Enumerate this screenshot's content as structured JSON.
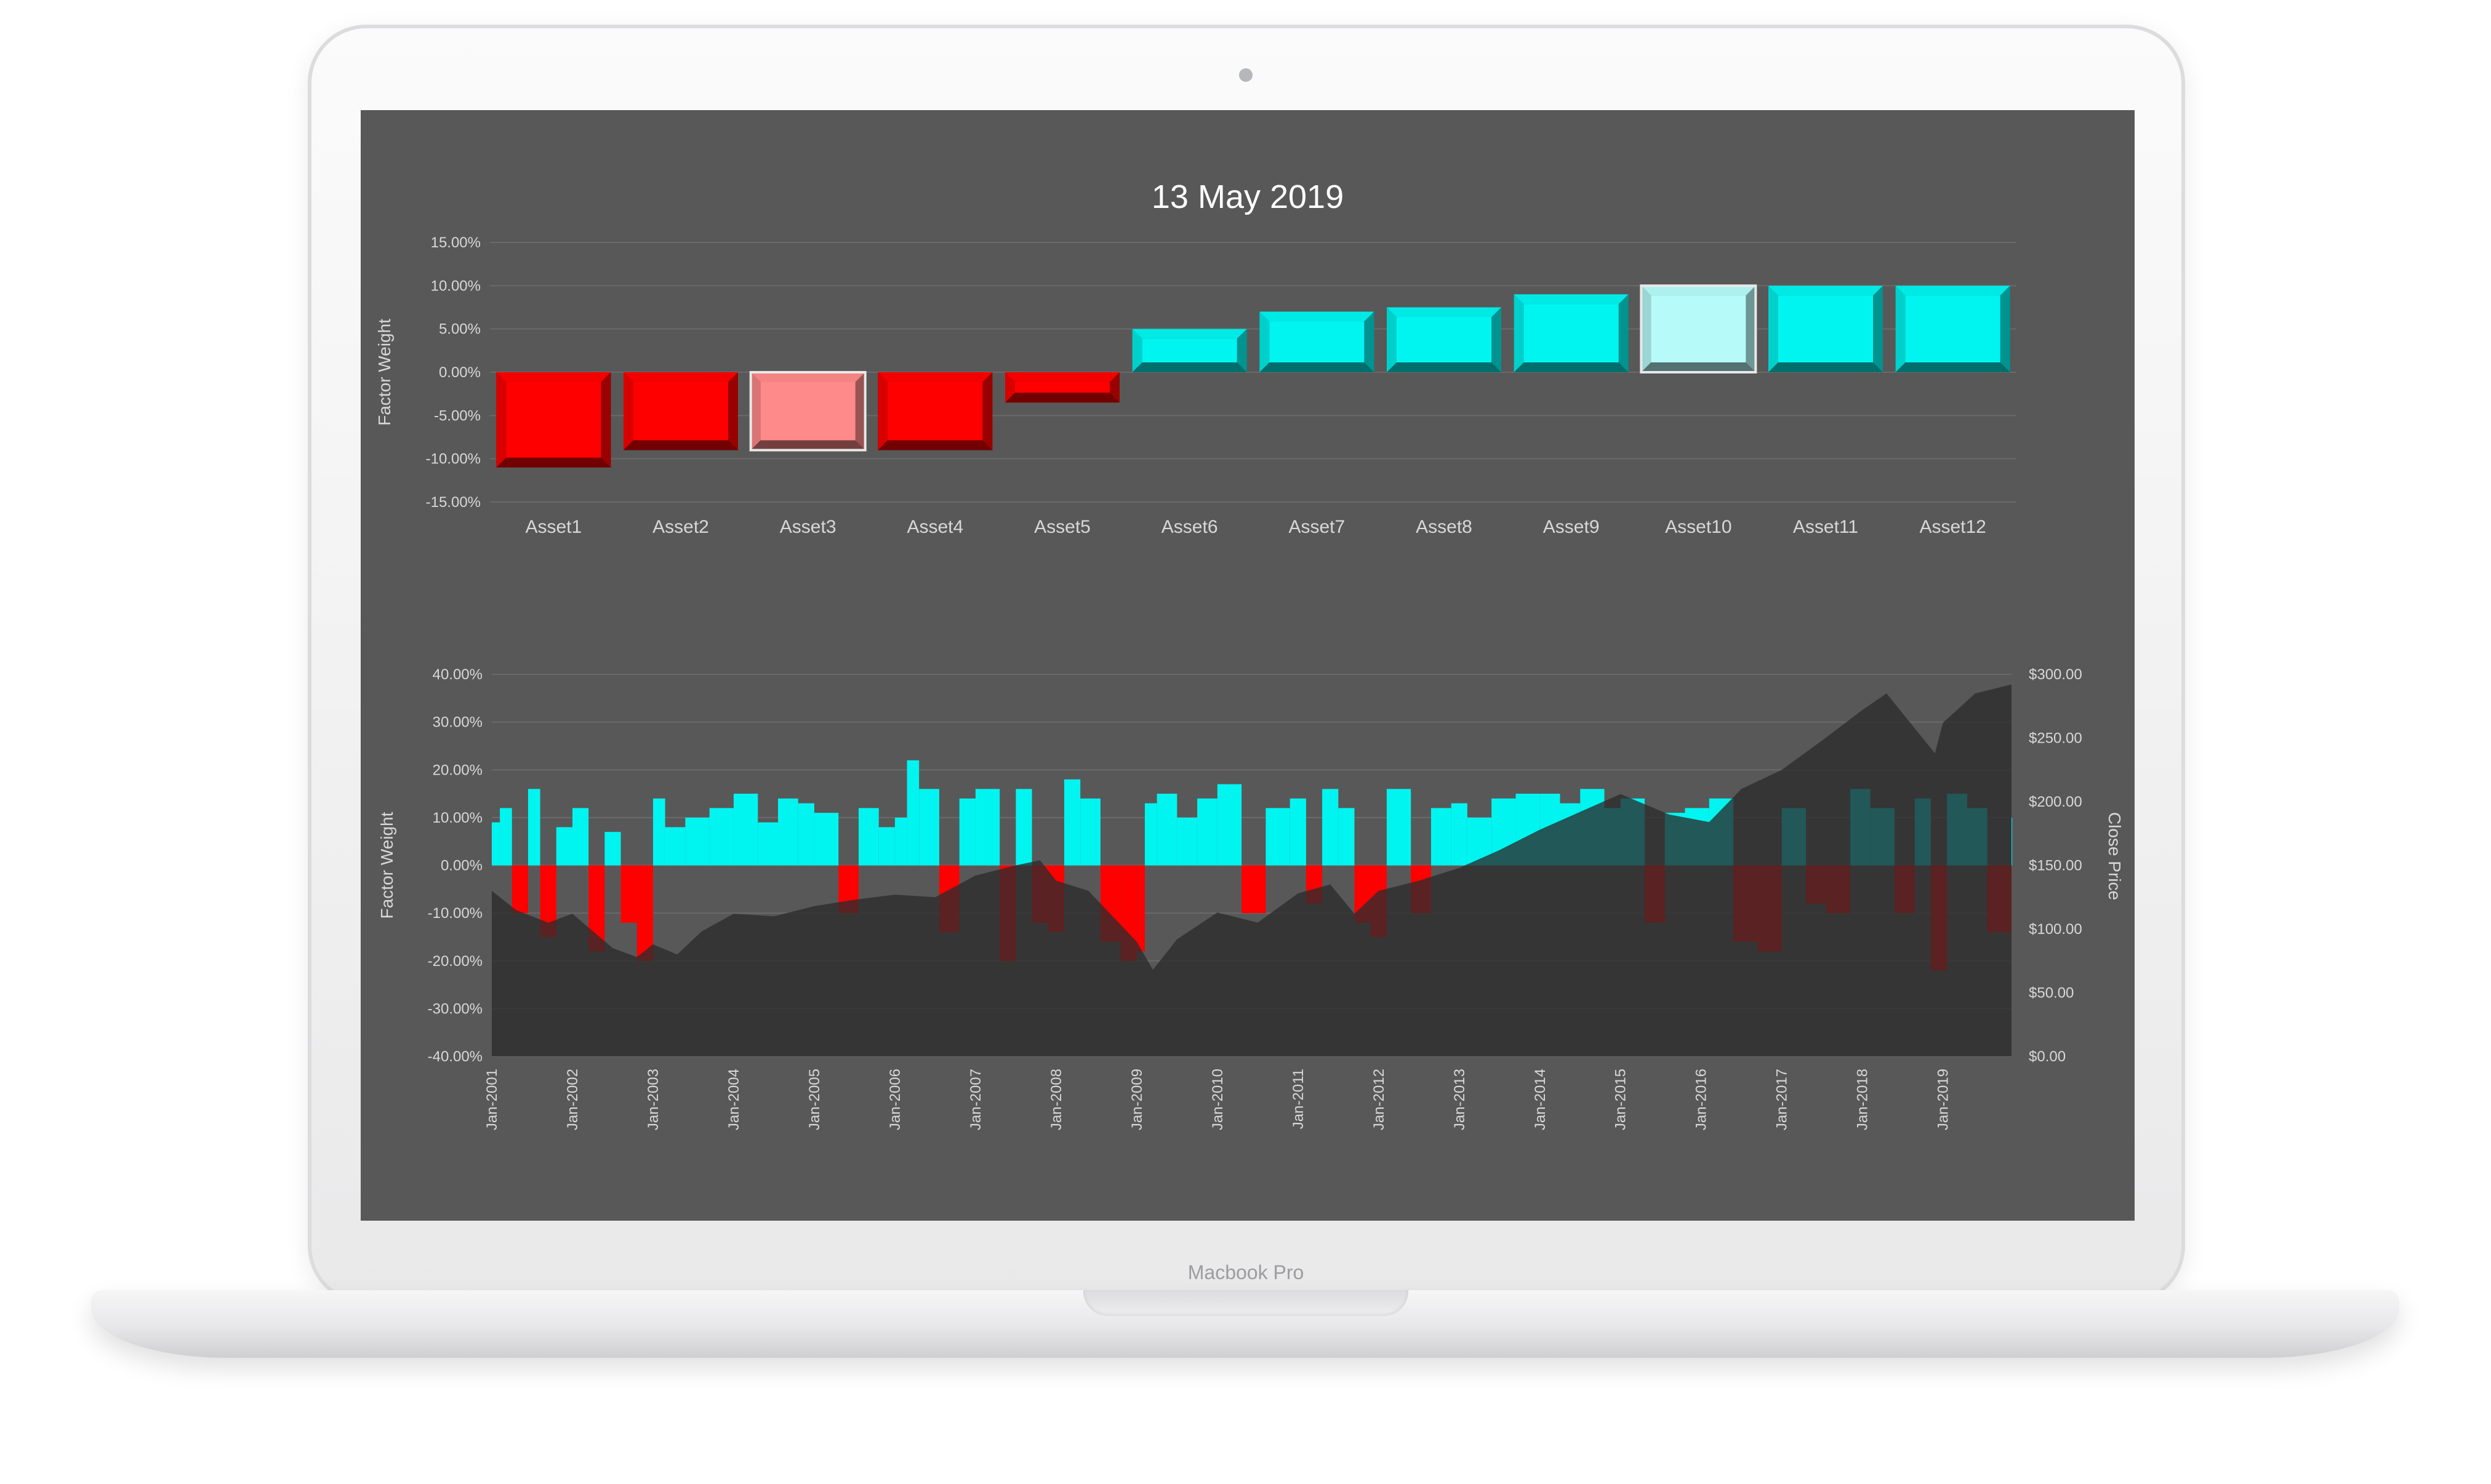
{
  "device": {
    "brand_label": "Macbook Pro",
    "frame_color": "#f3f3f4",
    "screen_background": "#585858"
  },
  "colors": {
    "negative": "#ff0000",
    "negative_highlight": "#ff8a8a",
    "positive": "#00f5f0",
    "positive_highlight": "#b6fbf9",
    "price_area": "#2b2b2b",
    "grid": "#6a6a6a",
    "text": "#d8d8d8"
  },
  "chart_data": [
    {
      "type": "bar",
      "title": "13 May 2019",
      "ylabel": "Factor Weight",
      "ylim": [
        -15,
        15
      ],
      "y_ticks": [
        "15.00%",
        "10.00%",
        "5.00%",
        "0.00%",
        "-5.00%",
        "-10.00%",
        "-15.00%"
      ],
      "y_tick_values": [
        15,
        10,
        5,
        0,
        -5,
        -10,
        -15
      ],
      "categories": [
        "Asset1",
        "Asset2",
        "Asset3",
        "Asset4",
        "Asset5",
        "Asset6",
        "Asset7",
        "Asset8",
        "Asset9",
        "Asset10",
        "Asset11",
        "Asset12"
      ],
      "values": [
        -11,
        -9,
        -9,
        -9,
        -3.5,
        5,
        7,
        7.5,
        9,
        10,
        10,
        10
      ],
      "highlighted": [
        "Asset3",
        "Asset10"
      ],
      "grid": true
    },
    {
      "type": "area",
      "ylabel": "Factor Weight",
      "y2label": "Close Price",
      "ylim": [
        -40,
        40
      ],
      "y2lim": [
        0,
        300
      ],
      "y_ticks": [
        "40.00%",
        "30.00%",
        "20.00%",
        "10.00%",
        "0.00%",
        "-10.00%",
        "-20.00%",
        "-30.00%",
        "-40.00%"
      ],
      "y_tick_values": [
        40,
        30,
        20,
        10,
        0,
        -10,
        -20,
        -30,
        -40
      ],
      "y2_ticks": [
        "$300.00",
        "$250.00",
        "$200.00",
        "$150.00",
        "$100.00",
        "$50.00",
        "$0.00"
      ],
      "y2_tick_values": [
        300,
        250,
        200,
        150,
        100,
        50,
        0
      ],
      "x_ticks": [
        "Jan-2001",
        "Jan-2002",
        "Jan-2003",
        "Jan-2004",
        "Jan-2005",
        "Jan-2006",
        "Jan-2007",
        "Jan-2008",
        "Jan-2009",
        "Jan-2010",
        "Jan-2011",
        "Jan-2012",
        "Jan-2013",
        "Jan-2014",
        "Jan-2015",
        "Jan-2016",
        "Jan-2017",
        "Jan-2018",
        "Jan-2019"
      ],
      "x_range": [
        2001.0,
        2019.85
      ],
      "series": [
        {
          "role": "close_price",
          "axis": "right",
          "x": [
            2001.0,
            2001.3,
            2001.7,
            2002.0,
            2002.5,
            2002.8,
            2003.0,
            2003.3,
            2003.6,
            2004.0,
            2004.5,
            2005.0,
            2005.5,
            2006.0,
            2006.5,
            2007.0,
            2007.5,
            2007.8,
            2008.0,
            2008.4,
            2008.7,
            2009.0,
            2009.2,
            2009.5,
            2010.0,
            2010.5,
            2011.0,
            2011.4,
            2011.7,
            2012.0,
            2012.5,
            2013.0,
            2013.5,
            2014.0,
            2014.5,
            2015.0,
            2015.6,
            2016.1,
            2016.5,
            2017.0,
            2017.5,
            2018.0,
            2018.3,
            2018.9,
            2019.0,
            2019.4,
            2019.85
          ],
          "y": [
            130,
            115,
            105,
            112,
            85,
            78,
            88,
            80,
            98,
            112,
            110,
            118,
            123,
            127,
            125,
            142,
            150,
            154,
            138,
            130,
            110,
            90,
            68,
            92,
            113,
            105,
            128,
            135,
            112,
            130,
            138,
            148,
            162,
            178,
            192,
            206,
            190,
            184,
            210,
            225,
            248,
            272,
            285,
            238,
            262,
            285,
            292
          ]
        },
        {
          "role": "factor_weight",
          "axis": "left",
          "x": [
            2001.0,
            2001.1,
            2001.25,
            2001.45,
            2001.6,
            2001.8,
            2002.0,
            2002.2,
            2002.4,
            2002.6,
            2002.8,
            2003.0,
            2003.15,
            2003.4,
            2003.7,
            2004.0,
            2004.3,
            2004.55,
            2004.8,
            2005.0,
            2005.3,
            2005.55,
            2005.8,
            2006.0,
            2006.15,
            2006.3,
            2006.55,
            2006.8,
            2007.0,
            2007.3,
            2007.5,
            2007.7,
            2007.9,
            2008.1,
            2008.3,
            2008.55,
            2008.8,
            2009.0,
            2009.1,
            2009.25,
            2009.5,
            2009.75,
            2010.0,
            2010.3,
            2010.6,
            2010.9,
            2011.1,
            2011.3,
            2011.5,
            2011.7,
            2011.9,
            2012.1,
            2012.4,
            2012.65,
            2012.9,
            2013.1,
            2013.4,
            2013.7,
            2014.0,
            2014.25,
            2014.5,
            2014.8,
            2015.0,
            2015.3,
            2015.55,
            2015.8,
            2016.1,
            2016.4,
            2016.7,
            2017.0,
            2017.3,
            2017.55,
            2017.85,
            2018.1,
            2018.4,
            2018.65,
            2018.85,
            2019.05,
            2019.3,
            2019.55,
            2019.85
          ],
          "y": [
            9,
            12,
            -10,
            16,
            -15,
            8,
            12,
            -18,
            7,
            -12,
            -20,
            14,
            8,
            10,
            12,
            15,
            9,
            14,
            13,
            11,
            -10,
            12,
            8,
            10,
            22,
            16,
            -14,
            14,
            16,
            -20,
            16,
            -12,
            -14,
            18,
            14,
            -16,
            -20,
            -18,
            13,
            15,
            10,
            14,
            17,
            -10,
            12,
            14,
            -8,
            16,
            12,
            -12,
            -15,
            16,
            -10,
            12,
            13,
            10,
            14,
            15,
            15,
            13,
            16,
            12,
            14,
            -12,
            11,
            12,
            14,
            -16,
            -18,
            12,
            -8,
            -10,
            16,
            12,
            -10,
            14,
            -22,
            15,
            12,
            -14,
            10
          ]
        }
      ],
      "grid": true
    }
  ]
}
